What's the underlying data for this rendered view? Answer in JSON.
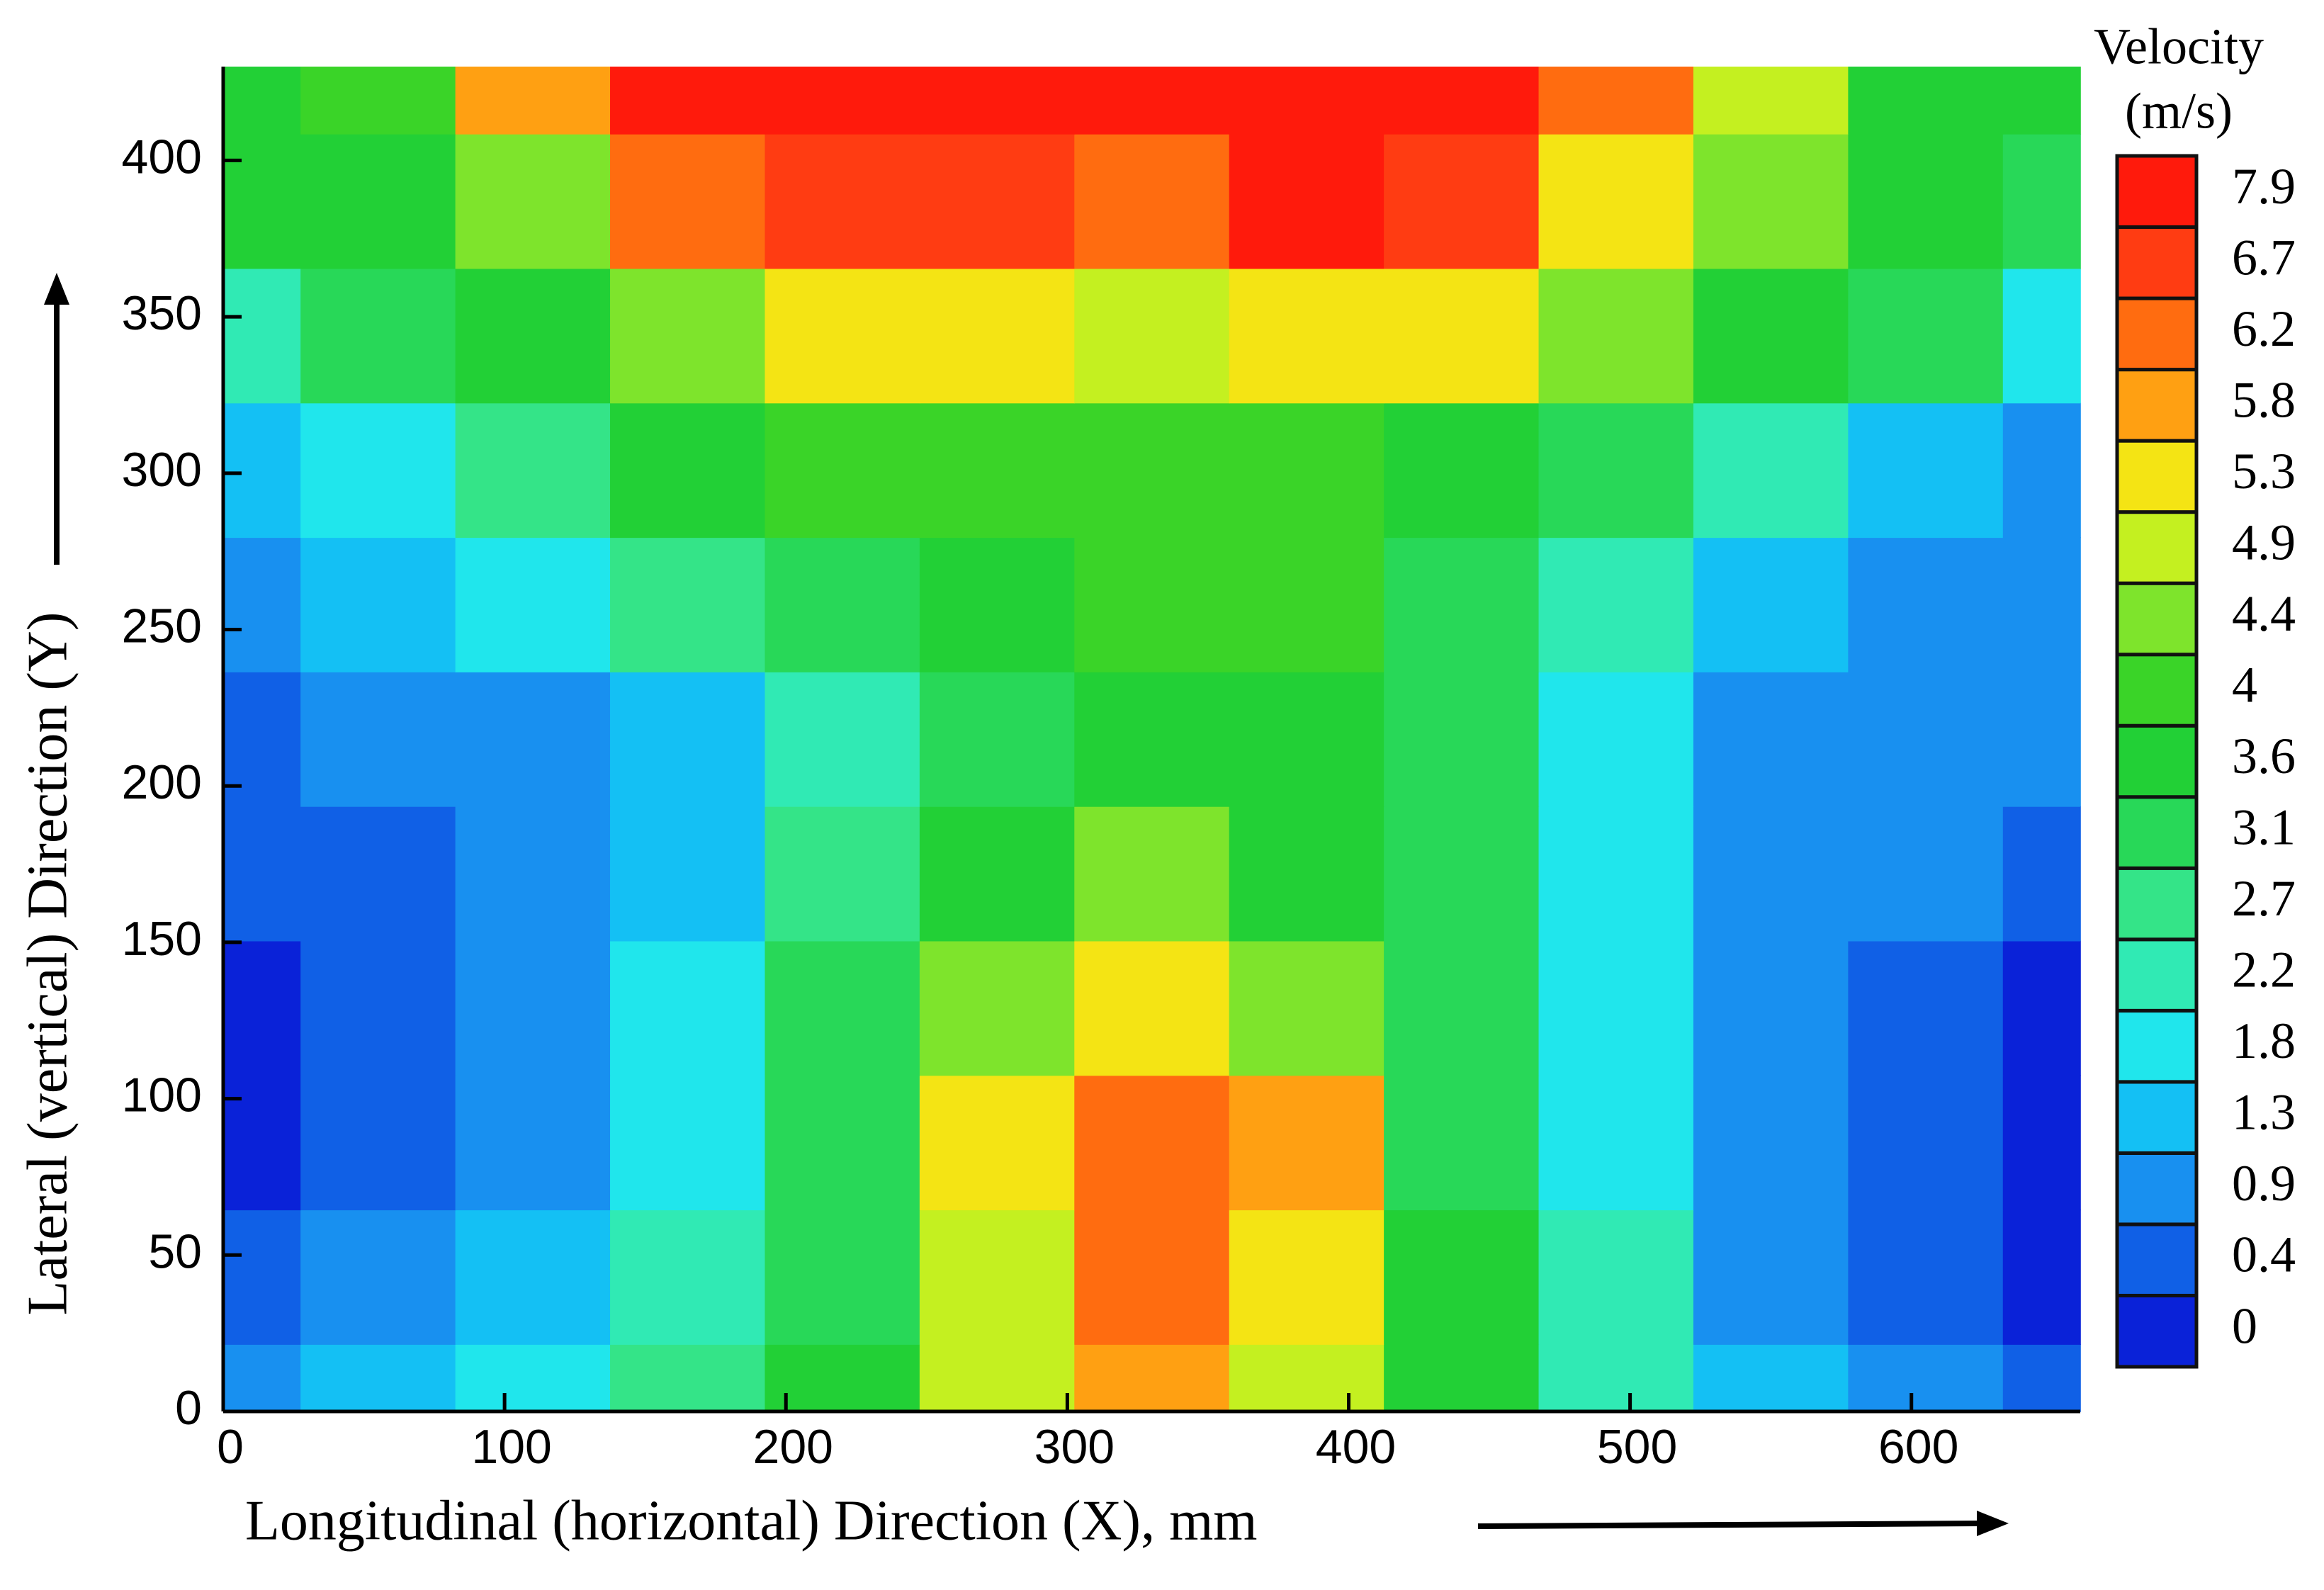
{
  "chart_data": {
    "type": "contour",
    "xlabel": "Longitudinal (horizontal) Direction  (X), mm",
    "ylabel": "Lateral (vertical) Direction (Y)",
    "xlim": [
      0,
      660
    ],
    "ylim": [
      0,
      430
    ],
    "xticks": [
      0,
      100,
      200,
      300,
      400,
      500,
      600
    ],
    "yticks": [
      0,
      50,
      100,
      150,
      200,
      250,
      300,
      350,
      400
    ],
    "x": [
      0,
      55,
      110,
      165,
      220,
      275,
      330,
      385,
      440,
      495,
      550,
      605,
      660
    ],
    "y": [
      0,
      43,
      86,
      129,
      172,
      215,
      258,
      301,
      344,
      387,
      430
    ],
    "z": [
      [
        0.9,
        1.3,
        1.8,
        2.7,
        3.6,
        4.9,
        5.8,
        4.9,
        3.6,
        2.2,
        1.3,
        0.9,
        0.4
      ],
      [
        0.4,
        0.9,
        1.3,
        2.2,
        3.1,
        4.9,
        6.2,
        5.3,
        3.6,
        2.2,
        0.9,
        0.4,
        0
      ],
      [
        0,
        0.4,
        0.9,
        1.8,
        3.1,
        5.3,
        6.2,
        5.8,
        3.1,
        1.8,
        0.9,
        0.4,
        0
      ],
      [
        0,
        0.4,
        0.9,
        1.8,
        3.1,
        4.4,
        5.3,
        4.4,
        3.1,
        1.8,
        0.9,
        0.4,
        0
      ],
      [
        0.4,
        0.4,
        0.9,
        1.3,
        2.7,
        3.6,
        4.4,
        3.6,
        3.1,
        1.8,
        0.9,
        0.9,
        0.4
      ],
      [
        0.4,
        0.9,
        0.9,
        1.3,
        2.2,
        3.1,
        3.6,
        3.6,
        3.1,
        1.8,
        0.9,
        0.9,
        0.9
      ],
      [
        0.9,
        1.3,
        1.8,
        2.7,
        3.1,
        3.6,
        4,
        4,
        3.1,
        2.2,
        1.3,
        0.9,
        0.9
      ],
      [
        1.3,
        1.8,
        2.7,
        3.6,
        4,
        4,
        4,
        4,
        3.6,
        3.1,
        2.2,
        1.3,
        0.9
      ],
      [
        2.2,
        3.1,
        3.6,
        4.4,
        5.3,
        5.3,
        4.9,
        5.3,
        5.3,
        4.4,
        3.6,
        3.1,
        1.8
      ],
      [
        3.6,
        3.6,
        4.4,
        6.2,
        6.7,
        6.7,
        6.2,
        7.9,
        6.7,
        5.3,
        4.4,
        3.6,
        3.1
      ],
      [
        3.6,
        4,
        5.8,
        7.9,
        7.9,
        7.9,
        7.9,
        7.9,
        7.9,
        6.2,
        4.9,
        3.6,
        3.6
      ]
    ],
    "colorbar": {
      "title": "Velocity",
      "unit": "(m/s)",
      "levels": [
        0,
        0.4,
        0.9,
        1.3,
        1.8,
        2.2,
        2.7,
        3.1,
        3.6,
        4,
        4.4,
        4.9,
        5.3,
        5.8,
        6.2,
        6.7,
        7.9
      ],
      "colors": [
        "#0a22d8",
        "#1060e6",
        "#1890f0",
        "#14c0f4",
        "#20e6ec",
        "#30eab4",
        "#34e488",
        "#28d858",
        "#22d036",
        "#3ad428",
        "#7ee42c",
        "#c4f020",
        "#f4e414",
        "#ffa012",
        "#ff6c10",
        "#ff3c12",
        "#ff1a0c"
      ]
    }
  }
}
